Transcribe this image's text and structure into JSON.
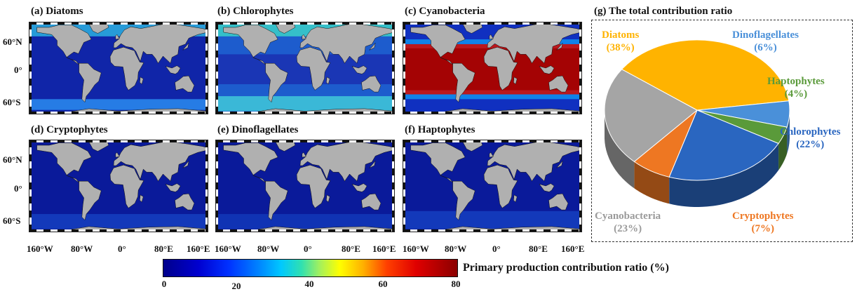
{
  "panels": [
    {
      "title": "(a) Diatoms"
    },
    {
      "title": "(b) Chlorophytes"
    },
    {
      "title": "(c) Cyanobacteria"
    },
    {
      "title": "(d) Cryptophytes"
    },
    {
      "title": "(e) Dinoflagellates"
    },
    {
      "title": "(f) Haptophytes"
    }
  ],
  "lat_labels": [
    "60°N",
    "0°",
    "60°S"
  ],
  "lon_labels": [
    "160°W",
    "80°W",
    "0°",
    "80°E",
    "160°E"
  ],
  "colorbar": {
    "label": "Primary production contribution ratio (%)",
    "ticks": [
      "0",
      "20",
      "40",
      "60",
      "80"
    ],
    "range": [
      0,
      80
    ]
  },
  "chart_data": [
    {
      "type": "heatmap",
      "title": "(a) Diatoms–(f) Haptophytes",
      "xlabel": "",
      "ylabel": "",
      "colorbar_label": "Primary production contribution ratio (%)",
      "colorbar_range": [
        0,
        80
      ],
      "x_ticks": [
        "160°W",
        "80°W",
        "0°",
        "80°E",
        "160°E"
      ],
      "y_ticks": [
        "60°N",
        "0°",
        "60°S"
      ]
    },
    {
      "type": "pie",
      "title": "(g) The total contribution ratio",
      "slices": [
        {
          "label": "Diatoms",
          "value": 38,
          "pct_label": "(38%)",
          "color": "#ffb300"
        },
        {
          "label": "Dinoflagellates",
          "value": 6,
          "pct_label": "(6%)",
          "color": "#4a90d9"
        },
        {
          "label": "Haptophytes",
          "value": 4,
          "pct_label": "(4%)",
          "color": "#5a9a3a"
        },
        {
          "label": "Chlorophytes",
          "value": 22,
          "pct_label": "(22%)",
          "color": "#2a66c0"
        },
        {
          "label": "Cryptophytes",
          "value": 7,
          "pct_label": "(7%)",
          "color": "#ee7722"
        },
        {
          "label": "Cyanobacteria",
          "value": 23,
          "pct_label": "(23%)",
          "color": "#a5a5a5"
        }
      ]
    }
  ]
}
